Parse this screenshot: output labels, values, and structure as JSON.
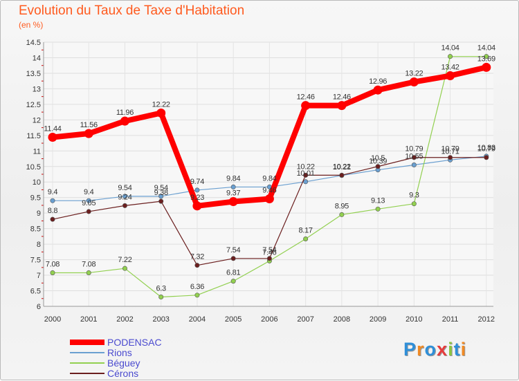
{
  "header": {
    "title": "Evolution du Taux de Taxe d'Habitation",
    "unit": "(en %)"
  },
  "logo": {
    "text": "Proxiti",
    "colors": [
      "#2f8fd8",
      "#f08a24",
      "#2f8fd8",
      "#e73c3c",
      "#8cc63e",
      "#2f8fd8",
      "#f08a24"
    ]
  },
  "chart_data": {
    "type": "line",
    "title": "Evolution du Taux de Taxe d'Habitation",
    "ylabel": "(en %)",
    "xlabel": "",
    "x": [
      "2000",
      "2001",
      "2002",
      "2003",
      "2004",
      "2005",
      "2006",
      "2007",
      "2008",
      "2009",
      "2010",
      "2011",
      "2012"
    ],
    "ylim": [
      6,
      14.5
    ],
    "yticks": [
      "6",
      "6.5",
      "7",
      "7.5",
      "8",
      "8.5",
      "9",
      "9.5",
      "10",
      "10.5",
      "11",
      "11.5",
      "12",
      "12.5",
      "13",
      "13.5",
      "14",
      "14.5"
    ],
    "legend_position": "bottom-left",
    "series": [
      {
        "name": "PODENSAC",
        "color": "#ff0000",
        "width": 8,
        "values": [
          11.44,
          11.56,
          11.96,
          12.22,
          9.23,
          9.37,
          9.46,
          12.46,
          12.46,
          12.96,
          13.22,
          13.42,
          13.69
        ]
      },
      {
        "name": "Rions",
        "color": "#6a9fd0",
        "width": 1.2,
        "values": [
          9.4,
          9.4,
          9.54,
          9.54,
          9.74,
          9.84,
          9.84,
          10.01,
          10.21,
          10.39,
          10.55,
          10.71,
          10.83
        ]
      },
      {
        "name": "Béguey",
        "color": "#92d050",
        "width": 1.2,
        "values": [
          7.08,
          7.08,
          7.22,
          6.3,
          6.36,
          6.81,
          7.46,
          8.17,
          8.95,
          9.13,
          9.3,
          14.04,
          14.04
        ]
      },
      {
        "name": "Cérons",
        "color": "#6b1f1f",
        "width": 1.2,
        "values": [
          8.8,
          9.05,
          9.24,
          9.38,
          7.32,
          7.54,
          7.54,
          10.22,
          10.22,
          10.5,
          10.79,
          10.79,
          10.79
        ]
      }
    ]
  }
}
